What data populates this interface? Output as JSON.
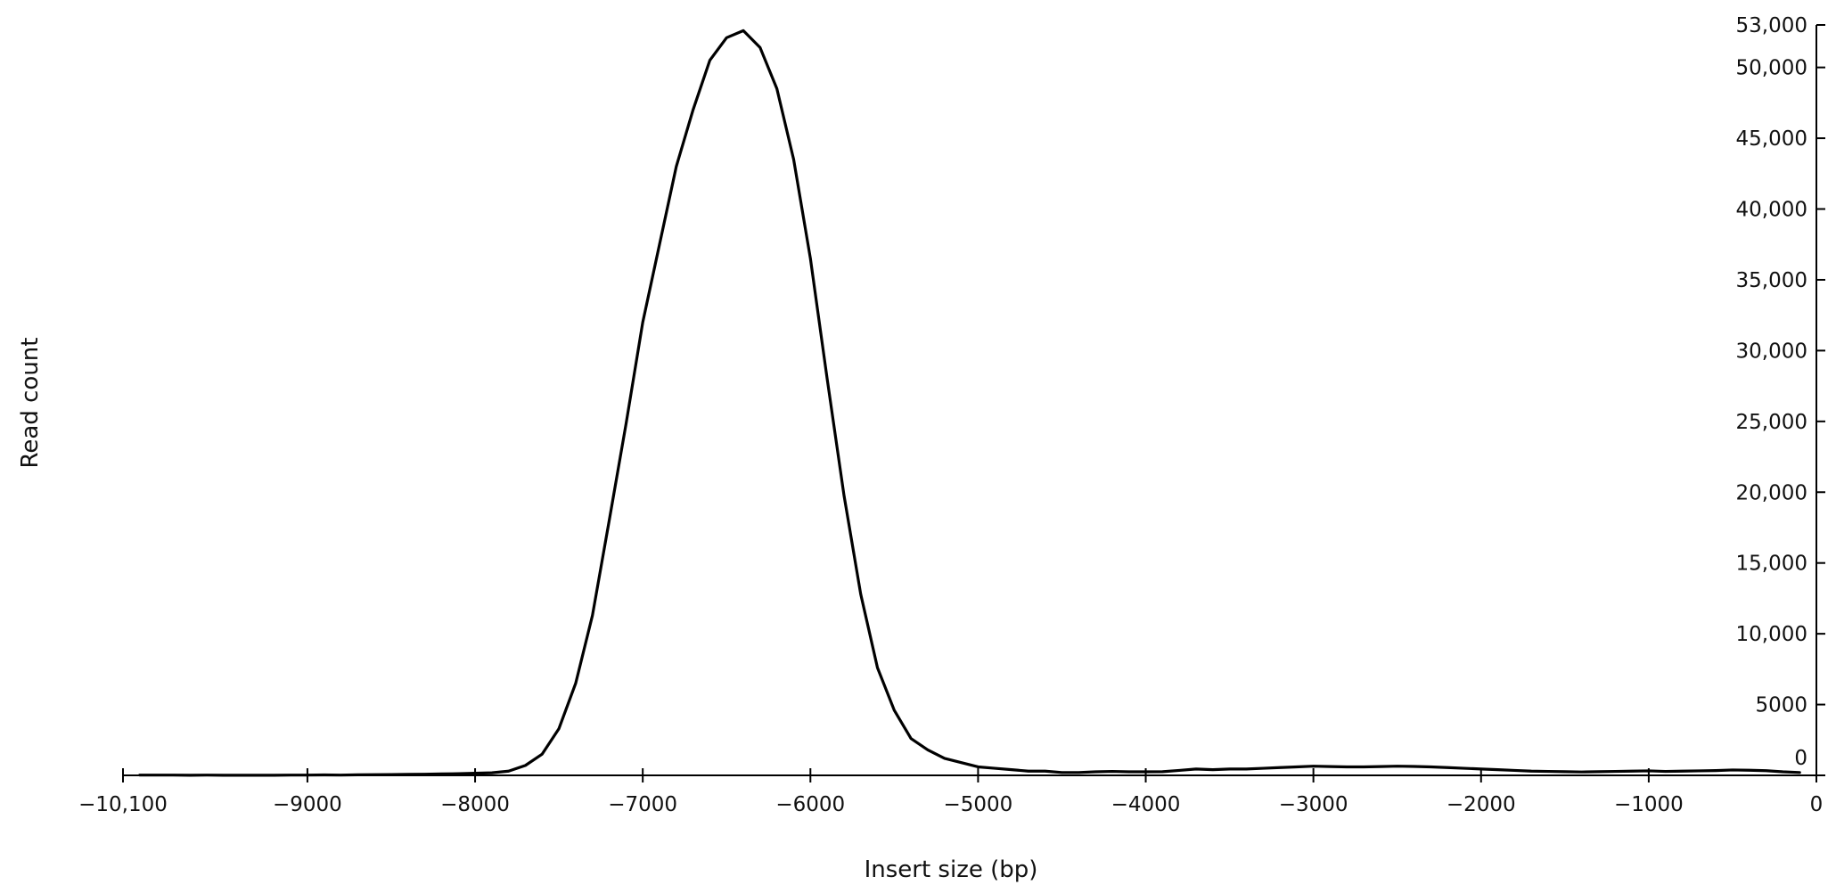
{
  "chart_data": {
    "type": "line",
    "title": "",
    "xlabel": "Insert size (bp)",
    "ylabel": "Read count",
    "xlim": [
      -10100,
      0
    ],
    "ylim": [
      0,
      53000
    ],
    "x_ticks": [
      -10100,
      -9000,
      -8000,
      -7000,
      -6000,
      -5000,
      -4000,
      -3000,
      -2000,
      -1000,
      0
    ],
    "x_tick_labels": [
      "−10,100",
      "−9000",
      "−8000",
      "−7000",
      "−6000",
      "−5000",
      "−4000",
      "−3000",
      "−2000",
      "−1000",
      "0"
    ],
    "y_ticks": [
      0,
      5000,
      10000,
      15000,
      20000,
      25000,
      30000,
      35000,
      40000,
      45000,
      50000,
      53000
    ],
    "y_tick_labels": [
      "0",
      "5000",
      "10,000",
      "15,000",
      "20,000",
      "25,000",
      "30,000",
      "35,000",
      "40,000",
      "45,000",
      "50,000",
      "53,000"
    ],
    "y_axis_side": "right",
    "grid": false,
    "legend": "none",
    "line_color": "#000000",
    "series": [
      {
        "x": [
          -10000,
          -9900,
          -9800,
          -9700,
          -9600,
          -9500,
          -9400,
          -9300,
          -9200,
          -9100,
          -9000,
          -8900,
          -8800,
          -8700,
          -8600,
          -8500,
          -8400,
          -8300,
          -8200,
          -8100,
          -8000,
          -7900,
          -7800,
          -7700,
          -7600,
          -7500,
          -7400,
          -7300,
          -7200,
          -7100,
          -7000,
          -6900,
          -6800,
          -6700,
          -6600,
          -6500,
          -6400,
          -6300,
          -6200,
          -6100,
          -6000,
          -5900,
          -5800,
          -5700,
          -5600,
          -5500,
          -5400,
          -5300,
          -5200,
          -5100,
          -5000,
          -4900,
          -4800,
          -4700,
          -4600,
          -4500,
          -4400,
          -4300,
          -4200,
          -4100,
          -4000,
          -3900,
          -3800,
          -3700,
          -3600,
          -3500,
          -3400,
          -3300,
          -3200,
          -3100,
          -3000,
          -2900,
          -2800,
          -2700,
          -2600,
          -2500,
          -2400,
          -2300,
          -2200,
          -2100,
          -2000,
          -1900,
          -1800,
          -1700,
          -1600,
          -1500,
          -1400,
          -1300,
          -1200,
          -1100,
          -1000,
          -900,
          -800,
          -700,
          -600,
          -500,
          -400,
          -300,
          -200,
          -100
        ],
        "values": [
          20,
          20,
          20,
          10,
          20,
          10,
          10,
          10,
          10,
          20,
          20,
          30,
          20,
          40,
          50,
          60,
          70,
          80,
          100,
          120,
          150,
          180,
          300,
          700,
          1500,
          3300,
          6500,
          11300,
          18000,
          24800,
          32000,
          37500,
          43000,
          47000,
          50500,
          52100,
          52600,
          51400,
          48500,
          43500,
          36500,
          28000,
          19800,
          12800,
          7600,
          4600,
          2600,
          1800,
          1200,
          900,
          600,
          500,
          400,
          300,
          300,
          200,
          200,
          250,
          280,
          250,
          250,
          260,
          350,
          450,
          400,
          450,
          450,
          500,
          550,
          600,
          650,
          620,
          600,
          600,
          620,
          650,
          630,
          600,
          550,
          500,
          450,
          400,
          350,
          300,
          280,
          260,
          240,
          260,
          280,
          300,
          320,
          280,
          300,
          320,
          340,
          380,
          360,
          330,
          250,
          200
        ]
      }
    ]
  }
}
